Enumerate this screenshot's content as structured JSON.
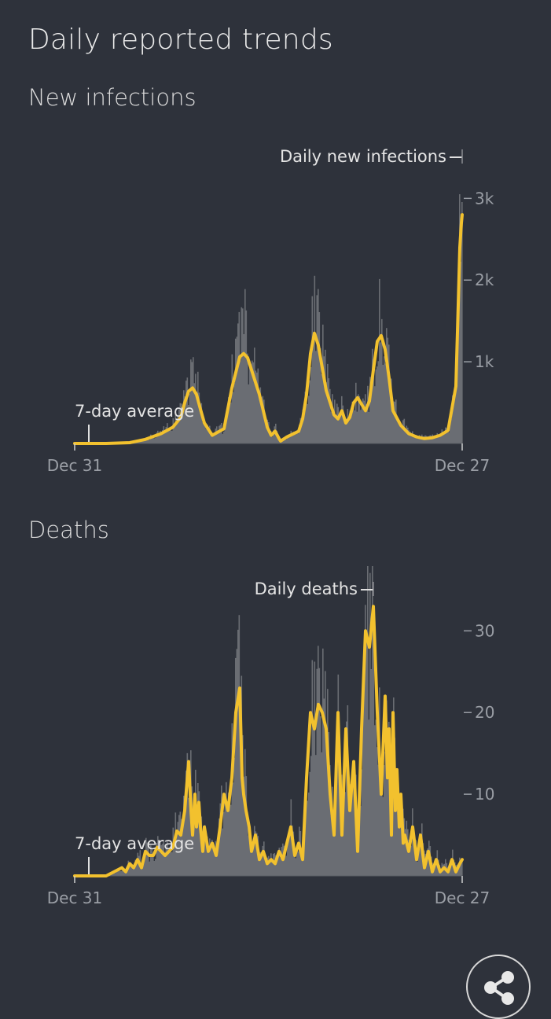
{
  "page": {
    "title": "Daily reported trends"
  },
  "sections": [
    {
      "title": "New infections"
    },
    {
      "title": "Deaths"
    }
  ],
  "colors": {
    "background": "#2e323b",
    "bars": "#6a6d73",
    "average": "#f2c12e",
    "text": "#e6e6e6",
    "muted": "#9a9ea5"
  },
  "icons": {
    "share": "share-icon"
  },
  "chart_data": [
    {
      "type": "bar",
      "overlay": "line",
      "x_labels": [
        "Dec 31",
        "Dec 27"
      ],
      "y_ticks": [
        1000,
        2000,
        3000
      ],
      "y_tick_labels": [
        "1k",
        "2k",
        "3k"
      ],
      "ylim": [
        0,
        3600
      ],
      "bar_label": "Daily new infections",
      "line_label": "7-day average",
      "series": [
        {
          "name": "7-day average",
          "x": [
            0,
            40,
            70,
            90,
            110,
            125,
            135,
            140,
            145,
            150,
            155,
            160,
            165,
            175,
            190,
            200,
            210,
            215,
            220,
            225,
            235,
            245,
            250,
            255,
            260,
            262,
            270,
            285,
            290,
            295,
            300,
            305,
            310,
            320,
            330,
            335,
            340,
            345,
            350,
            355,
            360,
            365,
            370,
            375,
            380,
            385,
            390,
            395,
            400,
            405,
            415,
            425,
            435,
            445,
            455,
            465,
            475,
            485,
            488,
            490,
            492,
            493
          ],
          "values": [
            0,
            0,
            10,
            50,
            120,
            200,
            320,
            500,
            640,
            680,
            600,
            420,
            250,
            100,
            180,
            680,
            1060,
            1100,
            1050,
            900,
            600,
            200,
            100,
            150,
            60,
            30,
            80,
            150,
            300,
            600,
            1100,
            1350,
            1200,
            650,
            350,
            300,
            400,
            250,
            320,
            500,
            560,
            480,
            400,
            520,
            900,
            1250,
            1320,
            1150,
            800,
            400,
            220,
            120,
            80,
            60,
            70,
            100,
            160,
            700,
            1700,
            2400,
            2700,
            2800
          ]
        },
        {
          "name": "Daily new infections",
          "x": [
            0,
            40,
            70,
            90,
            110,
            125,
            135,
            140,
            145,
            150,
            155,
            160,
            165,
            175,
            190,
            200,
            210,
            215,
            220,
            225,
            235,
            245,
            250,
            255,
            260,
            262,
            270,
            285,
            290,
            295,
            300,
            305,
            310,
            320,
            330,
            335,
            340,
            345,
            350,
            355,
            360,
            365,
            370,
            375,
            380,
            385,
            390,
            395,
            400,
            405,
            415,
            425,
            435,
            445,
            455,
            465,
            475,
            485,
            488,
            490,
            492,
            493
          ],
          "values": [
            0,
            0,
            15,
            60,
            150,
            260,
            420,
            650,
            800,
            860,
            740,
            520,
            300,
            130,
            230,
            880,
            1350,
            1500,
            1300,
            1100,
            760,
            260,
            130,
            190,
            80,
            40,
            100,
            190,
            390,
            760,
            1400,
            1600,
            1480,
            820,
            440,
            380,
            500,
            320,
            400,
            640,
            720,
            610,
            520,
            660,
            1150,
            1550,
            1600,
            1450,
            1000,
            520,
            280,
            150,
            100,
            80,
            90,
            130,
            200,
            900,
            2000,
            2900,
            3200,
            3500
          ]
        }
      ]
    },
    {
      "type": "bar",
      "overlay": "line",
      "x_labels": [
        "Dec 31",
        "Dec 27"
      ],
      "y_ticks": [
        10,
        20,
        30
      ],
      "y_tick_labels": [
        "10",
        "20",
        "30"
      ],
      "ylim": [
        0,
        36
      ],
      "bar_label": "Daily deaths",
      "line_label": "7-day average",
      "series": [
        {
          "name": "7-day average",
          "x": [
            0,
            40,
            60,
            65,
            70,
            75,
            80,
            85,
            90,
            95,
            100,
            105,
            110,
            115,
            120,
            125,
            130,
            135,
            140,
            145,
            148,
            150,
            153,
            155,
            158,
            160,
            163,
            165,
            170,
            175,
            180,
            185,
            190,
            195,
            200,
            205,
            210,
            213,
            215,
            218,
            222,
            225,
            230,
            235,
            240,
            245,
            250,
            255,
            260,
            265,
            270,
            275,
            280,
            285,
            290,
            295,
            300,
            305,
            310,
            315,
            320,
            325,
            330,
            335,
            340,
            345,
            350,
            355,
            360,
            365,
            370,
            375,
            380,
            385,
            390,
            395,
            398,
            400,
            403,
            405,
            408,
            410,
            413,
            415,
            418,
            420,
            425,
            430,
            435,
            440,
            445,
            450,
            455,
            460,
            465,
            470,
            475,
            480,
            485,
            490,
            493
          ],
          "values": [
            0,
            0,
            1,
            0.5,
            1.5,
            1,
            2,
            1,
            3,
            2.5,
            2.5,
            3.5,
            3,
            2.5,
            3,
            3.5,
            5.5,
            5,
            8,
            14,
            8,
            5,
            10,
            6,
            9,
            6,
            3,
            6,
            3,
            4,
            2.5,
            6,
            10,
            8,
            12,
            20,
            23,
            12,
            10,
            8,
            6,
            3,
            5,
            2,
            3,
            1.5,
            2,
            1.5,
            3,
            2,
            4,
            6,
            2.5,
            4,
            2,
            12,
            20,
            18,
            21,
            20,
            18,
            10,
            5,
            20,
            5,
            18,
            8,
            14,
            3,
            18,
            30,
            28,
            33,
            20,
            10,
            22,
            12,
            18,
            5,
            20,
            8,
            13,
            6,
            10,
            4,
            5,
            3,
            6,
            2,
            5,
            1,
            3,
            0.5,
            2,
            0.5,
            1,
            0.5,
            2,
            0.5,
            1.5,
            2
          ]
        },
        {
          "name": "Daily deaths",
          "x": [
            0,
            40,
            60,
            65,
            70,
            75,
            80,
            85,
            90,
            95,
            100,
            105,
            110,
            115,
            120,
            125,
            130,
            135,
            140,
            145,
            148,
            150,
            153,
            155,
            158,
            160,
            163,
            165,
            170,
            175,
            180,
            185,
            190,
            195,
            200,
            205,
            210,
            213,
            215,
            218,
            222,
            225,
            230,
            235,
            240,
            245,
            250,
            255,
            260,
            265,
            270,
            275,
            280,
            285,
            290,
            295,
            300,
            305,
            310,
            315,
            320,
            325,
            330,
            335,
            340,
            345,
            350,
            355,
            360,
            365,
            370,
            375,
            380,
            385,
            390,
            395,
            398,
            400,
            403,
            405,
            408,
            410,
            413,
            415,
            418,
            420,
            425,
            430,
            435,
            440,
            445,
            450,
            455,
            460,
            465,
            470,
            475,
            480,
            485,
            490,
            493
          ],
          "values": [
            0,
            0,
            1,
            1,
            2,
            1,
            3,
            2,
            4,
            3,
            3,
            4,
            4,
            3,
            4,
            5,
            7,
            6,
            10,
            17,
            10,
            7,
            12,
            8,
            11,
            8,
            4,
            7,
            4,
            5,
            3,
            8,
            13,
            10,
            15,
            24,
            26,
            15,
            13,
            10,
            8,
            4,
            6,
            3,
            4,
            2,
            3,
            2,
            4,
            3,
            5,
            8,
            3,
            5,
            3,
            15,
            22,
            20,
            23,
            22,
            20,
            12,
            7,
            23,
            7,
            20,
            10,
            16,
            4,
            20,
            32,
            30,
            35,
            22,
            12,
            24,
            14,
            20,
            6,
            22,
            10,
            15,
            8,
            12,
            5,
            7,
            4,
            8,
            3,
            6,
            2,
            4,
            1,
            3,
            1,
            2,
            1,
            3,
            1,
            2,
            2
          ]
        }
      ]
    }
  ]
}
